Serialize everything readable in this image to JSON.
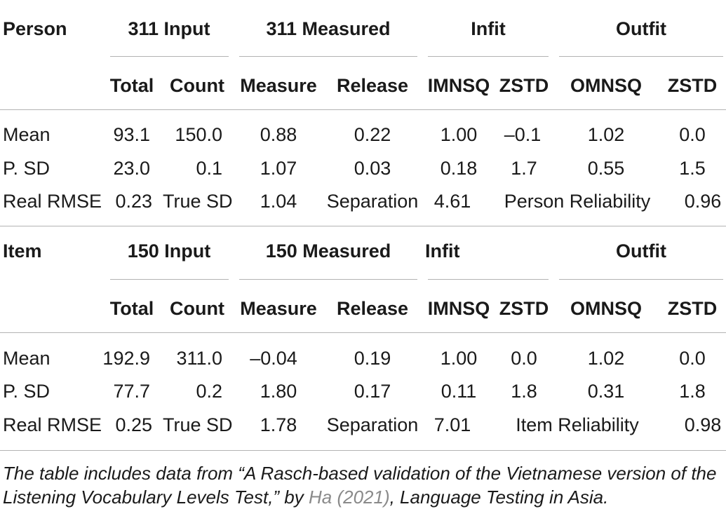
{
  "person": {
    "header": {
      "label": "Person",
      "input": "311 Input",
      "measured": "311 Measured",
      "infit": "Infit",
      "outfit": "Outfit"
    },
    "subheader": [
      "Total",
      "Count",
      "Measure",
      "Release",
      "IMNSQ",
      "ZSTD",
      "OMNSQ",
      "ZSTD"
    ],
    "rows": [
      {
        "label": "Mean",
        "cells": [
          "93.1",
          "150.0",
          "0.88",
          "0.22",
          "1.00",
          "–0.1",
          "1.02",
          "0.0"
        ]
      },
      {
        "label": "P. SD",
        "cells": [
          "23.0",
          "0.1",
          "1.07",
          "0.03",
          "0.18",
          "1.7",
          "0.55",
          "1.5"
        ]
      }
    ],
    "summary": {
      "label": "Real RMSE",
      "rmse": "0.23",
      "true_sd_label": "True SD",
      "true_sd": "1.04",
      "separation_label": "Separation",
      "separation": "4.61",
      "reliability_label": "Person Reliability",
      "reliability": "0.96"
    }
  },
  "item": {
    "header": {
      "label": "Item",
      "input": "150 Input",
      "measured": "150 Measured",
      "infit": "Infit",
      "outfit": "Outfit"
    },
    "subheader": [
      "Total",
      "Count",
      "Measure",
      "Release",
      "IMNSQ",
      "ZSTD",
      "OMNSQ",
      "ZSTD"
    ],
    "rows": [
      {
        "label": "Mean",
        "cells": [
          "192.9",
          "311.0",
          "–0.04",
          "0.19",
          "1.00",
          "0.0",
          "1.02",
          "0.0"
        ]
      },
      {
        "label": "P. SD",
        "cells": [
          "77.7",
          "0.2",
          "1.80",
          "0.17",
          "0.11",
          "1.8",
          "0.31",
          "1.8"
        ]
      }
    ],
    "summary": {
      "label": "Real RMSE",
      "rmse": "0.25",
      "true_sd_label": "True SD",
      "true_sd": "1.78",
      "separation_label": "Separation",
      "separation": "7.01",
      "reliability_label": "Item Reliability",
      "reliability": "0.98"
    }
  },
  "caption": {
    "before": "The table includes data from “A Rasch-based validation of the Vietnamese version of the Listening Vocabulary Levels Test,” by ",
    "citation": "Ha (2021)",
    "after": ", Language Testing in Asia."
  },
  "colors": {
    "text": "#1a1a1a",
    "rule": "#b3b3b3",
    "citation_link": "#8a8a8a"
  }
}
